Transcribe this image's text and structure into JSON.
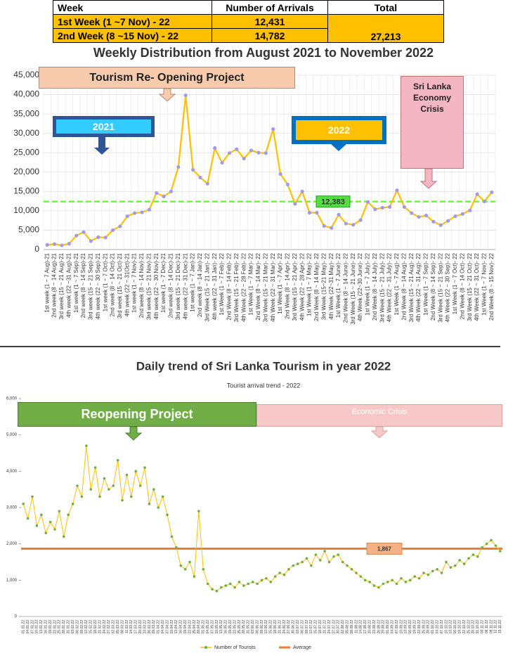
{
  "table": {
    "header": [
      "Week",
      "Number of Arrivals",
      "Total"
    ],
    "rows": [
      [
        "1st Week (1 ~7 Nov) - 22",
        "12,431"
      ],
      [
        "2nd Week (8 ~15 Nov) - 22",
        "14,782"
      ]
    ],
    "total": "27,213"
  },
  "chart_data": [
    {
      "type": "line",
      "title": "Weekly Distribution from August 2021 to November 2022",
      "categories": [
        "1st week (1 ~ 7 Aug)-21",
        "2nd week (8 ~ 14 Aug)-21",
        "3rd week (15 ~ 21 Aug)-21",
        "4th week (22 ~31 Aug)-21",
        "1st week (1 ~ 7 Sep)-21",
        "2nd week (8 ~ 14 Sep)-21",
        "3rd week (15 ~ 21 Sep)-21",
        "4th week (22 ~ 30 Sep)-21",
        "1st week (1 ~ 7 Oct)-21",
        "2nd week (8 ~ 14 Oct)-21",
        "3rd week (15 ~ 21 Oct)-21",
        "4th week (22 ~ 31Oct)-21",
        "1st week (1 ~ 7 Nov)-21",
        "2nd week (8 ~ 14 Nov)-21",
        "3rd week (15 ~ 21 Nov)-21",
        "4th week (22 ~ 30 Nov)-21",
        "1st week (1 ~ 7 Dec)-21",
        "2nd week (8 ~ 14 Dec)-21",
        "3rd week (15 ~ 21 Dec)-21",
        "4th week (22 ~ 31 Dec)-21",
        "1st week (1 ~ 7 Jan)-22",
        "2nd week (8 ~ 14 Jan)-22",
        "3rd Week (15 ~ 21 Jan)- 22",
        "4th week (22 ~ 31 Jan)- 22",
        "1st Week (1 ~ 7 Feb)- 22",
        "2nd Week (8 ~ 14 Feb)- 22",
        "3rd Week (15 ~ 21 Feb)- 22",
        "4th Week (22 ~ 28 Feb)- 22",
        "1st Week (1 ~ 7 Mar)- 22",
        "2nd Week (8 ~ 14 Mar)- 22",
        "3rd Week (15 ~ 21 Mar)- 22",
        "4th Week (22 ~ 31 Mar)- 22",
        "1st Week (1 ~ 7 Apr)- 22",
        "2nd Week (8 ~ 14 Apr)- 22",
        "3rd Week (15 ~ 21 Apr)- 22",
        "4th Week (22 ~ 28 Apr)- 22",
        "1st Week (1 ~ 7 May)- 22",
        "2nd Week (8 ~ 14 May)- 22",
        "3rd Week (15~21 May)- 22",
        "4th Week (22~31 May)- 22",
        "1st Week (1 ~ 7 June)- 22",
        "2nd Week (8 ~ 14 June)- 22",
        "3rd Week (15 ~ 21 June)- 22",
        "4th Week (22~30 June)- 22",
        "1st Week (1 ~ 7 July)- 22",
        "2nd Week (8 ~ 14 July)- 22",
        "3rd Week (15 ~ 21 July)- 22",
        "4th Week (22 ~ 31 July)- 22",
        "1st Week (1 ~ 7 Aug)- 22",
        "2nd Week (8 ~ 14 Aug)- 22",
        "3rd Week (15 ~ 21 Aug)- 22",
        "4th Week (22 ~ 31 Aug)- 22",
        "1st Week (1 ~ 7 Sep)- 22",
        "2nd Week (8 ~ 14 Sep)- 22",
        "3rd Week (15 ~ 21 Sep)- 22",
        "4th Week (22 ~ 30 Sep)- 22",
        "1st Week (1 ~ 7 Oct)- 22",
        "2nd Week (8 ~ 14 Oct)- 22",
        "3rd Week (15 ~ 21 Oct)- 22",
        "4th Week (22 ~ 31 Oct)- 22",
        "1st Week (1 ~ 7 Nov)- 22",
        "2nd Week (8 ~ 15 Nov)- 22"
      ],
      "series": [
        {
          "color": "#ffc000",
          "marker_color": "#a29bea",
          "values": [
            1200,
            1400,
            1100,
            1500,
            3600,
            4500,
            2200,
            3200,
            3100,
            5000,
            6000,
            8600,
            9400,
            9600,
            10300,
            14600,
            13700,
            15000,
            21300,
            39800,
            20600,
            18600,
            17000,
            26200,
            22400,
            24900,
            25900,
            23500,
            25600,
            25000,
            24900,
            31100,
            19500,
            16800,
            11800,
            15000,
            9500,
            9500,
            6100,
            5600,
            9000,
            6700,
            6400,
            7600,
            12300,
            10400,
            10800,
            11000,
            15300,
            11000,
            9400,
            8400,
            8800,
            7200,
            6300,
            7400,
            8600,
            9200,
            10100,
            14300,
            12431,
            14782
          ]
        }
      ],
      "average": {
        "value": 12383,
        "label": "12,383",
        "color": "#66ff33"
      },
      "annotations": [
        "Tourism Re- Opening Project",
        "2021",
        "2022",
        "Sri Lanka Economy Crisis"
      ],
      "ylim": [
        0,
        45000
      ],
      "yticks": [
        0,
        {
          "value": 5000,
          "label": "5,000"
        },
        {
          "value": 10000,
          "label": "10,000"
        },
        {
          "value": 15000,
          "label": "15,000"
        },
        {
          "value": 20000,
          "label": "20,000"
        },
        {
          "value": 25000,
          "label": "25,000"
        },
        {
          "value": 30000,
          "label": "30,000"
        },
        {
          "value": 35000,
          "label": "35,000"
        },
        {
          "value": 40000,
          "label": "40,000"
        },
        {
          "value": 45000,
          "label": "45,000"
        }
      ],
      "grid": true
    },
    {
      "type": "line",
      "title": "Daily trend of Sri Lanka Tourism in year 2022",
      "subtitle": "Tourist arrival trend - 2022",
      "categories": [
        "01.01.22",
        "04.01.22",
        "07.01.22",
        "10.01.22",
        "13.01.22",
        "16.01.22",
        "19.01.22",
        "22.01.22",
        "25.01.22",
        "28.01.22",
        "31.01.22",
        "03.02.22",
        "06.02.22",
        "09.02.22",
        "12.02.22",
        "15.02.22",
        "18.02.22",
        "21.02.22",
        "24.02.22",
        "27.02.22",
        "02.03.22",
        "05.03.22",
        "08.03.22",
        "11.03.22",
        "14.03.22",
        "17.03.22",
        "20.03.22",
        "23.03.22",
        "26.03.22",
        "29.03.22",
        "01.04.22",
        "04.04.22",
        "07.04.22",
        "10.04.22",
        "13.04.22",
        "16.04.22",
        "19.04.22",
        "22.04.22",
        "25.04.22",
        "28.04.22",
        "01.05.22",
        "04.05.22",
        "07.05.22",
        "10.05.22",
        "13.05.22",
        "16.05.22",
        "19.05.22",
        "22.05.22",
        "25.05.22",
        "28.05.22",
        "31.05.22",
        "03.06.22",
        "06.06.22",
        "09.06.22",
        "12.06.22",
        "15.06.22",
        "18.06.22",
        "21.06.22",
        "24.06.22",
        "27.06.22",
        "30.06.22",
        "03.07.22",
        "06.07.22",
        "09.07.22",
        "12.07.22",
        "15.07.22",
        "18.07.22",
        "21.07.22",
        "24.07.22",
        "27.07.22",
        "30.07.22",
        "02.08.22",
        "05.08.22",
        "08.08.22",
        "11.08.22",
        "14.08.22",
        "17.08.22",
        "20.08.22",
        "23.08.22",
        "26.08.22",
        "29.08.22",
        "01.09.22",
        "04.09.22",
        "07.09.22",
        "10.09.22",
        "13.09.22",
        "16.09.22",
        "19.09.22",
        "22.09.22",
        "25.09.22",
        "28.09.22",
        "01.10.22",
        "04.10.22",
        "07.10.22",
        "10.10.22",
        "13.10.22",
        "16.10.22",
        "19.10.22",
        "22.10.22",
        "25.10.22",
        "28.10.22",
        "31.10.22",
        "03.11.22",
        "06.11.22",
        "09.11.22",
        "12.11.22",
        "15.11.22"
      ],
      "series": [
        {
          "name": "Number of Tourists",
          "color": "#ffc000",
          "marker_color": "#70ad47",
          "values": [
            3100,
            2700,
            3300,
            2500,
            2800,
            2300,
            2600,
            2400,
            2900,
            2200,
            2800,
            3100,
            3600,
            3300,
            4700,
            3500,
            4100,
            3300,
            3800,
            3500,
            3600,
            4300,
            3200,
            3900,
            3300,
            4000,
            3600,
            4100,
            3100,
            3500,
            3000,
            3300,
            2800,
            2200,
            1900,
            1400,
            1300,
            1500,
            1100,
            2900,
            1300,
            900,
            750,
            700,
            800,
            850,
            900,
            800,
            950,
            850,
            900,
            950,
            900,
            1000,
            1050,
            950,
            1100,
            1200,
            1150,
            1300,
            1400,
            1450,
            1500,
            1600,
            1400,
            1700,
            1550,
            1800,
            1500,
            1650,
            1700,
            1500,
            1400,
            1300,
            1200,
            1100,
            1000,
            950,
            850,
            800,
            900,
            950,
            1000,
            900,
            1050,
            950,
            1000,
            1100,
            1050,
            1200,
            1150,
            1250,
            1300,
            1200,
            1500,
            1350,
            1400,
            1550,
            1450,
            1600,
            1700,
            1650,
            1900,
            2000,
            2100,
            1950,
            1800
          ]
        }
      ],
      "average": {
        "name": "Average",
        "value": 1867,
        "label": "1,867",
        "color": "#ed7d31"
      },
      "annotations": [
        "Reopening Project",
        "Economic Crisis"
      ],
      "ylim": [
        0,
        6000
      ],
      "yticks": [
        0,
        {
          "value": 1000,
          "label": "1,000"
        },
        {
          "value": 2000,
          "label": "2,000"
        },
        {
          "value": 3000,
          "label": "3,000"
        },
        {
          "value": 4000,
          "label": "4,000"
        },
        {
          "value": 5000,
          "label": "5,000"
        },
        {
          "value": 6000,
          "label": "6,000"
        }
      ],
      "grid": false
    }
  ]
}
